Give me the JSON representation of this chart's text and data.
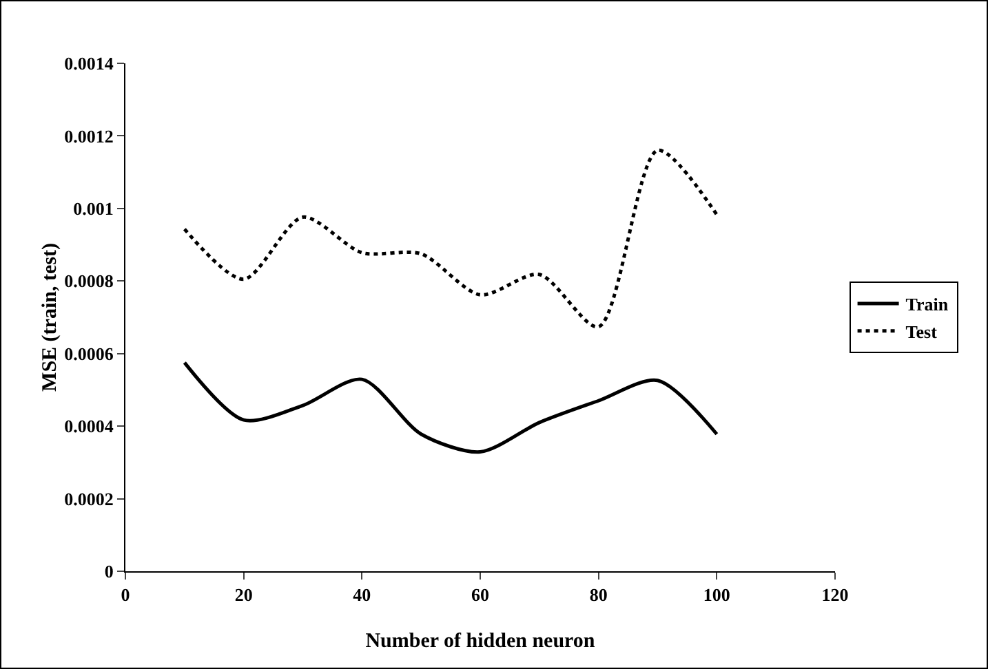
{
  "chart_data": {
    "type": "line",
    "xlabel": "Number of hidden neuron",
    "ylabel": "MSE (train, test)",
    "x": [
      10,
      20,
      30,
      40,
      50,
      60,
      70,
      80,
      90,
      100
    ],
    "series": [
      {
        "name": "Train",
        "color": "#000000",
        "line_style": "solid",
        "values": [
          0.000575,
          0.000417,
          0.000457,
          0.000529,
          0.000378,
          0.000329,
          0.00041,
          0.00047,
          0.000526,
          0.000378
        ]
      },
      {
        "name": "Test",
        "color": "#000000",
        "line_style": "dotted",
        "values": [
          0.000943,
          0.000805,
          0.000976,
          0.000878,
          0.000875,
          0.000762,
          0.000818,
          0.000674,
          0.00116,
          0.000983
        ]
      }
    ],
    "xlim": [
      0,
      120
    ],
    "xticks": [
      0,
      20,
      40,
      60,
      80,
      100,
      120
    ],
    "ylim": [
      0,
      0.0014
    ],
    "yticks": [
      0,
      0.0002,
      0.0004,
      0.0006,
      0.0008,
      0.001,
      0.0012,
      0.0014
    ],
    "grid": false,
    "legend": "right",
    "marker": "none"
  }
}
